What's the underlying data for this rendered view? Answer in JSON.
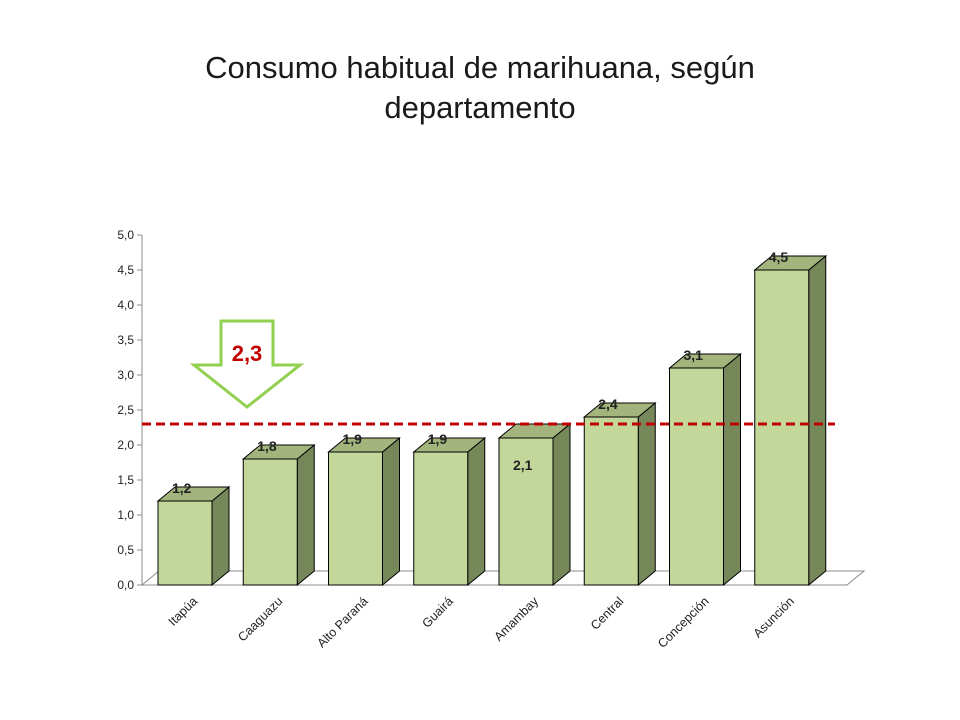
{
  "chart_data": {
    "type": "bar",
    "title": "Consumo habitual de marihuana, según\ndepartamento",
    "categories": [
      "Itapúa",
      "Caaguazu",
      "Alto Paraná",
      "Guairá",
      "Amambay",
      "Central",
      "Concepción",
      "Asunción"
    ],
    "values": [
      1.2,
      1.8,
      1.9,
      1.9,
      2.1,
      2.4,
      3.1,
      4.5
    ],
    "data_labels": [
      "1,2",
      "1,8",
      "1,9",
      "1,9",
      "2,1",
      "2,4",
      "3,1",
      "4,5"
    ],
    "y_ticks": [
      "0,0",
      "0,5",
      "1,0",
      "1,5",
      "2,0",
      "2,5",
      "3,0",
      "3,5",
      "4,0",
      "4,5",
      "5,0"
    ],
    "ylim": [
      0,
      5
    ],
    "xlabel": "",
    "ylabel": "",
    "reference_line": {
      "value": 2.3,
      "label": "2,3",
      "color": "#c00000"
    },
    "bar_colors": {
      "front": "#c4d79b",
      "side": "#76885a",
      "top": "#a3b47c",
      "outline": "#000000"
    },
    "arrow_color": "#92d050"
  }
}
